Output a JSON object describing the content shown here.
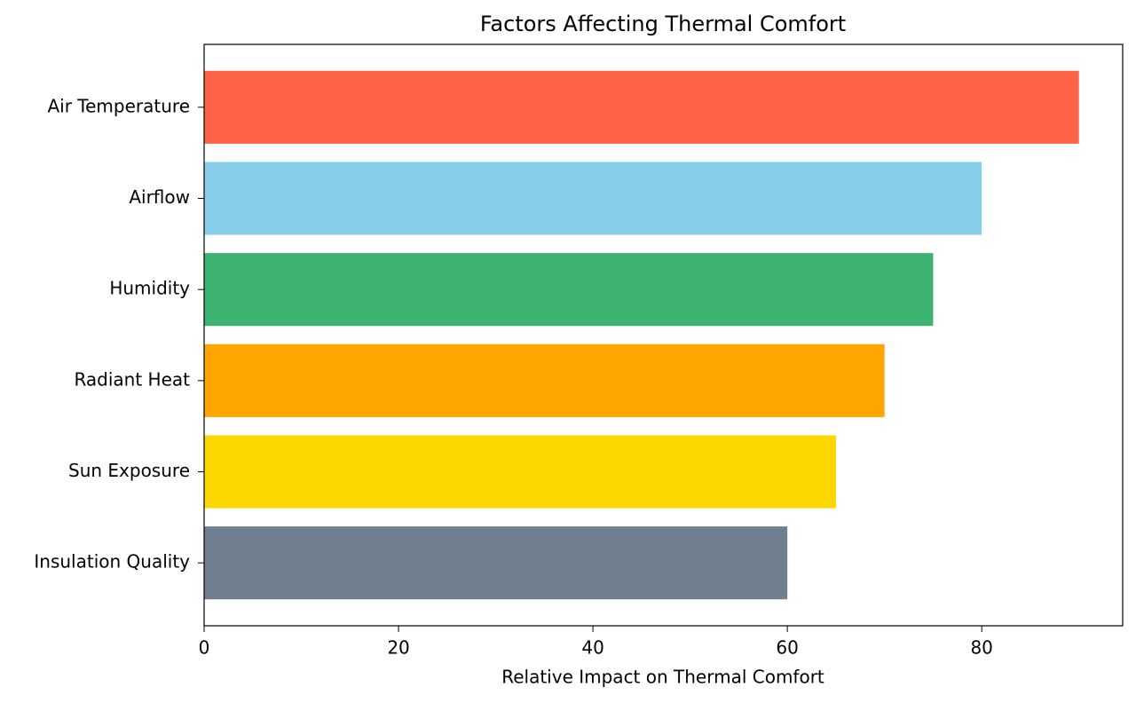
{
  "chart_data": {
    "type": "bar",
    "orientation": "horizontal",
    "title": "Factors Affecting Thermal Comfort",
    "x_label": "Relative Impact on Thermal Comfort",
    "categories": [
      "Air Temperature",
      "Airflow",
      "Humidity",
      "Radiant Heat",
      "Sun Exposure",
      "Insulation Quality"
    ],
    "values": [
      90,
      80,
      75,
      70,
      65,
      60
    ],
    "colors": [
      "#FF6347",
      "#87CEEB",
      "#3CB371",
      "#FFA500",
      "#FFD700",
      "#708090"
    ],
    "xlim": [
      0,
      94.5
    ],
    "xticks": [
      0,
      20,
      40,
      60,
      80
    ],
    "grid": false
  }
}
